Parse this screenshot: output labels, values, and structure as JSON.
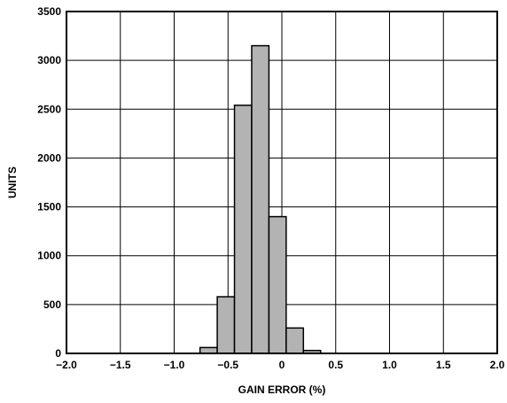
{
  "chart_data": {
    "type": "bar",
    "title": "",
    "xlabel": "GAIN ERROR (%)",
    "ylabel": "UNITS",
    "xlim": [
      -2.0,
      2.0
    ],
    "ylim": [
      0,
      3500
    ],
    "grid": true,
    "bar_color": "#b3b3b3",
    "bin_width": 0.16,
    "bins": [
      {
        "x0": -0.76,
        "x1": -0.6,
        "value": 60
      },
      {
        "x0": -0.6,
        "x1": -0.44,
        "value": 580
      },
      {
        "x0": -0.44,
        "x1": -0.28,
        "value": 2540
      },
      {
        "x0": -0.28,
        "x1": -0.12,
        "value": 3150
      },
      {
        "x0": -0.12,
        "x1": 0.04,
        "value": 1400
      },
      {
        "x0": 0.04,
        "x1": 0.2,
        "value": 260
      },
      {
        "x0": 0.2,
        "x1": 0.36,
        "value": 30
      }
    ],
    "x_ticks": [
      {
        "value": -2.0,
        "label": "−2.0"
      },
      {
        "value": -1.5,
        "label": "−1.5"
      },
      {
        "value": -1.0,
        "label": "−1.0"
      },
      {
        "value": -0.5,
        "label": "−0.5"
      },
      {
        "value": 0,
        "label": "0"
      },
      {
        "value": 0.5,
        "label": "0.5"
      },
      {
        "value": 1.0,
        "label": "1.0"
      },
      {
        "value": 1.5,
        "label": "1.5"
      },
      {
        "value": 2.0,
        "label": "2.0"
      }
    ],
    "y_ticks": [
      {
        "value": 0,
        "label": "0"
      },
      {
        "value": 500,
        "label": "500"
      },
      {
        "value": 1000,
        "label": "1000"
      },
      {
        "value": 1500,
        "label": "1500"
      },
      {
        "value": 2000,
        "label": "2000"
      },
      {
        "value": 2500,
        "label": "2500"
      },
      {
        "value": 3000,
        "label": "3000"
      },
      {
        "value": 3500,
        "label": "3500"
      }
    ]
  }
}
